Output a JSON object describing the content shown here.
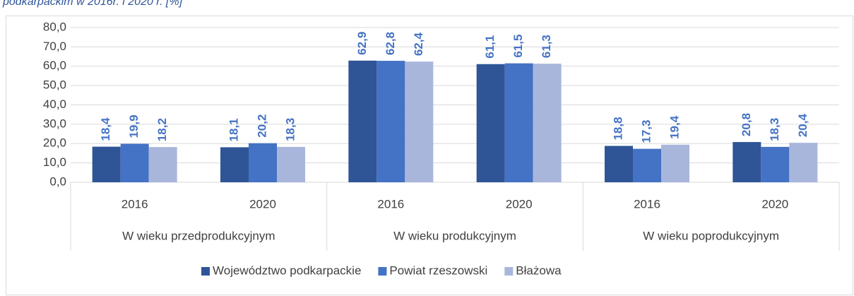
{
  "chart_data": {
    "type": "bar",
    "title": "podkarpackim w 2016r. i 2020 r. [%]",
    "categories": [
      "2016",
      "2020",
      "2016",
      "2020",
      "2016",
      "2020"
    ],
    "groups": [
      "W wieku przedprodukcyjnym",
      "W wieku produkcyjnym",
      "W wieku poprodukcyjnym"
    ],
    "series": [
      {
        "name": "Województwo podkarpackie",
        "color": "#2f5597",
        "values": [
          18.4,
          18.1,
          62.9,
          61.1,
          18.8,
          20.8
        ],
        "value_labels": [
          "18,4",
          "18,1",
          "62,9",
          "61,1",
          "18,8",
          "20,8"
        ]
      },
      {
        "name": "Powiat rzeszowski",
        "color": "#4472c4",
        "values": [
          19.9,
          20.2,
          62.8,
          61.5,
          17.3,
          18.3
        ],
        "value_labels": [
          "19,9",
          "20,2",
          "62,8",
          "61,5",
          "17,3",
          "18,3"
        ]
      },
      {
        "name": "Błażowa",
        "color": "#a9b6dc",
        "values": [
          18.2,
          18.3,
          62.4,
          61.3,
          19.4,
          20.4
        ],
        "value_labels": [
          "18,2",
          "18,3",
          "62,4",
          "61,3",
          "19,4",
          "20,4"
        ]
      }
    ],
    "ylim": [
      0,
      80
    ],
    "yticks": [
      {
        "value": 0,
        "label": "0,0"
      },
      {
        "value": 10,
        "label": "10,0"
      },
      {
        "value": 20,
        "label": "20,0"
      },
      {
        "value": 30,
        "label": "30,0"
      },
      {
        "value": 40,
        "label": "40,0"
      },
      {
        "value": 50,
        "label": "50,0"
      },
      {
        "value": 60,
        "label": "60,0"
      },
      {
        "value": 70,
        "label": "70,0"
      },
      {
        "value": 80,
        "label": "80,0"
      }
    ],
    "grid": true,
    "legend": "bottom",
    "label_color": "#4472c4"
  }
}
